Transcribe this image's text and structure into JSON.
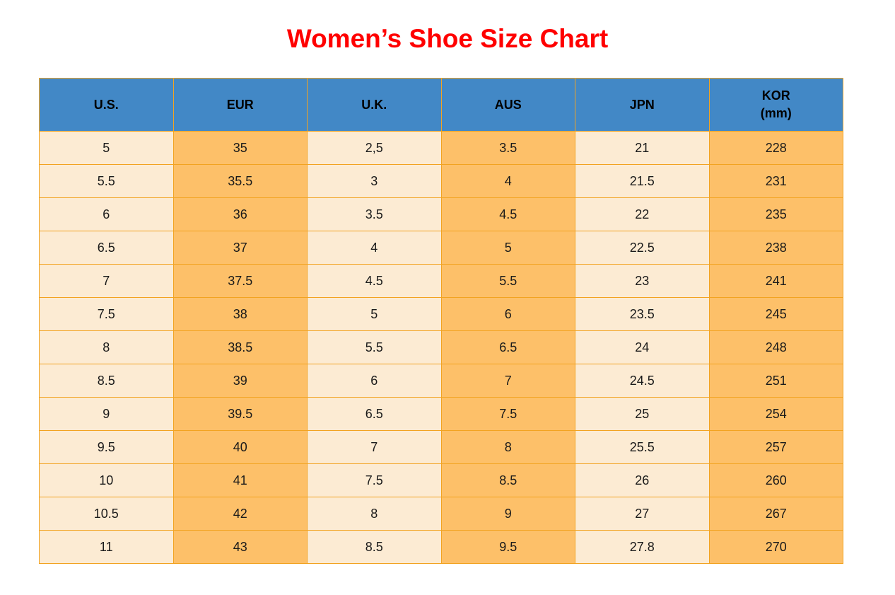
{
  "title": "Women’s Shoe Size Chart",
  "colors": {
    "header_bg": "#4288C6",
    "column_light": "#FCEBD3",
    "column_orange": "#FDC069",
    "border": "#F2A321",
    "title_red": "#FF0000",
    "header_text": "#000000",
    "cell_text": "#1A1A1A"
  },
  "table": {
    "columns": [
      {
        "label": "U.S.",
        "sublabel": ""
      },
      {
        "label": "EUR",
        "sublabel": ""
      },
      {
        "label": "U.K.",
        "sublabel": ""
      },
      {
        "label": "AUS",
        "sublabel": ""
      },
      {
        "label": "JPN",
        "sublabel": ""
      },
      {
        "label": "KOR",
        "sublabel": "(mm)"
      }
    ],
    "rows": [
      [
        "5",
        "35",
        "2,5",
        "3.5",
        "21",
        "228"
      ],
      [
        "5.5",
        "35.5",
        "3",
        "4",
        "21.5",
        "231"
      ],
      [
        "6",
        "36",
        "3.5",
        "4.5",
        "22",
        "235"
      ],
      [
        "6.5",
        "37",
        "4",
        "5",
        "22.5",
        "238"
      ],
      [
        "7",
        "37.5",
        "4.5",
        "5.5",
        "23",
        "241"
      ],
      [
        "7.5",
        "38",
        "5",
        "6",
        "23.5",
        "245"
      ],
      [
        "8",
        "38.5",
        "5.5",
        "6.5",
        "24",
        "248"
      ],
      [
        "8.5",
        "39",
        "6",
        "7",
        "24.5",
        "251"
      ],
      [
        "9",
        "39.5",
        "6.5",
        "7.5",
        "25",
        "254"
      ],
      [
        "9.5",
        "40",
        "7",
        "8",
        "25.5",
        "257"
      ],
      [
        "10",
        "41",
        "7.5",
        "8.5",
        "26",
        "260"
      ],
      [
        "10.5",
        "42",
        "8",
        "9",
        "27",
        "267"
      ],
      [
        "11",
        "43",
        "8.5",
        "9.5",
        "27.8",
        "270"
      ]
    ]
  },
  "chart_data": {
    "type": "table",
    "title": "Women’s Shoe Size Chart",
    "columns": [
      "U.S.",
      "EUR",
      "U.K.",
      "AUS",
      "JPN",
      "KOR (mm)"
    ],
    "rows": [
      [
        "5",
        "35",
        "2,5",
        "3.5",
        "21",
        "228"
      ],
      [
        "5.5",
        "35.5",
        "3",
        "4",
        "21.5",
        "231"
      ],
      [
        "6",
        "36",
        "3.5",
        "4.5",
        "22",
        "235"
      ],
      [
        "6.5",
        "37",
        "4",
        "5",
        "22.5",
        "238"
      ],
      [
        "7",
        "37.5",
        "4.5",
        "5.5",
        "23",
        "241"
      ],
      [
        "7.5",
        "38",
        "5",
        "6",
        "23.5",
        "245"
      ],
      [
        "8",
        "38.5",
        "5.5",
        "6.5",
        "24",
        "248"
      ],
      [
        "8.5",
        "39",
        "6",
        "7",
        "24.5",
        "251"
      ],
      [
        "9",
        "39.5",
        "6.5",
        "7.5",
        "25",
        "254"
      ],
      [
        "9.5",
        "40",
        "7",
        "8",
        "25.5",
        "257"
      ],
      [
        "10",
        "41",
        "7.5",
        "8.5",
        "26",
        "260"
      ],
      [
        "10.5",
        "42",
        "8",
        "9",
        "27",
        "267"
      ],
      [
        "11",
        "43",
        "8.5",
        "9.5",
        "27.8",
        "270"
      ]
    ],
    "layout": {
      "column_striping": [
        "light",
        "orange",
        "light",
        "orange",
        "light",
        "orange"
      ],
      "header_style": "blue"
    }
  }
}
